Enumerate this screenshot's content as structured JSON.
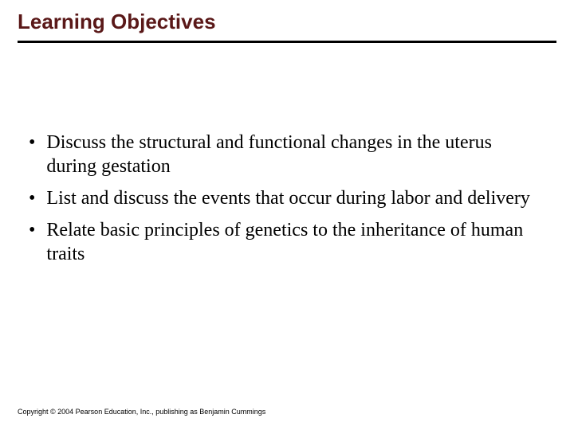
{
  "slide": {
    "title": "Learning Objectives",
    "title_color": "#5a1818",
    "title_fontsize": 26,
    "underline_color": "#000000",
    "underline_height": 3,
    "background_color": "#ffffff",
    "bullets": [
      {
        "marker": "•",
        "text": "Discuss the structural and functional changes in the uterus during gestation"
      },
      {
        "marker": "•",
        "text": "List and discuss the events that occur during labor and delivery"
      },
      {
        "marker": "•",
        "text": "Relate basic principles of genetics to the inheritance of human traits"
      }
    ],
    "bullet_fontsize": 24,
    "bullet_lineheight": 30,
    "bullet_color": "#000000",
    "footer": "Copyright © 2004 Pearson Education, Inc., publishing as Benjamin Cummings",
    "footer_fontsize": 9
  }
}
